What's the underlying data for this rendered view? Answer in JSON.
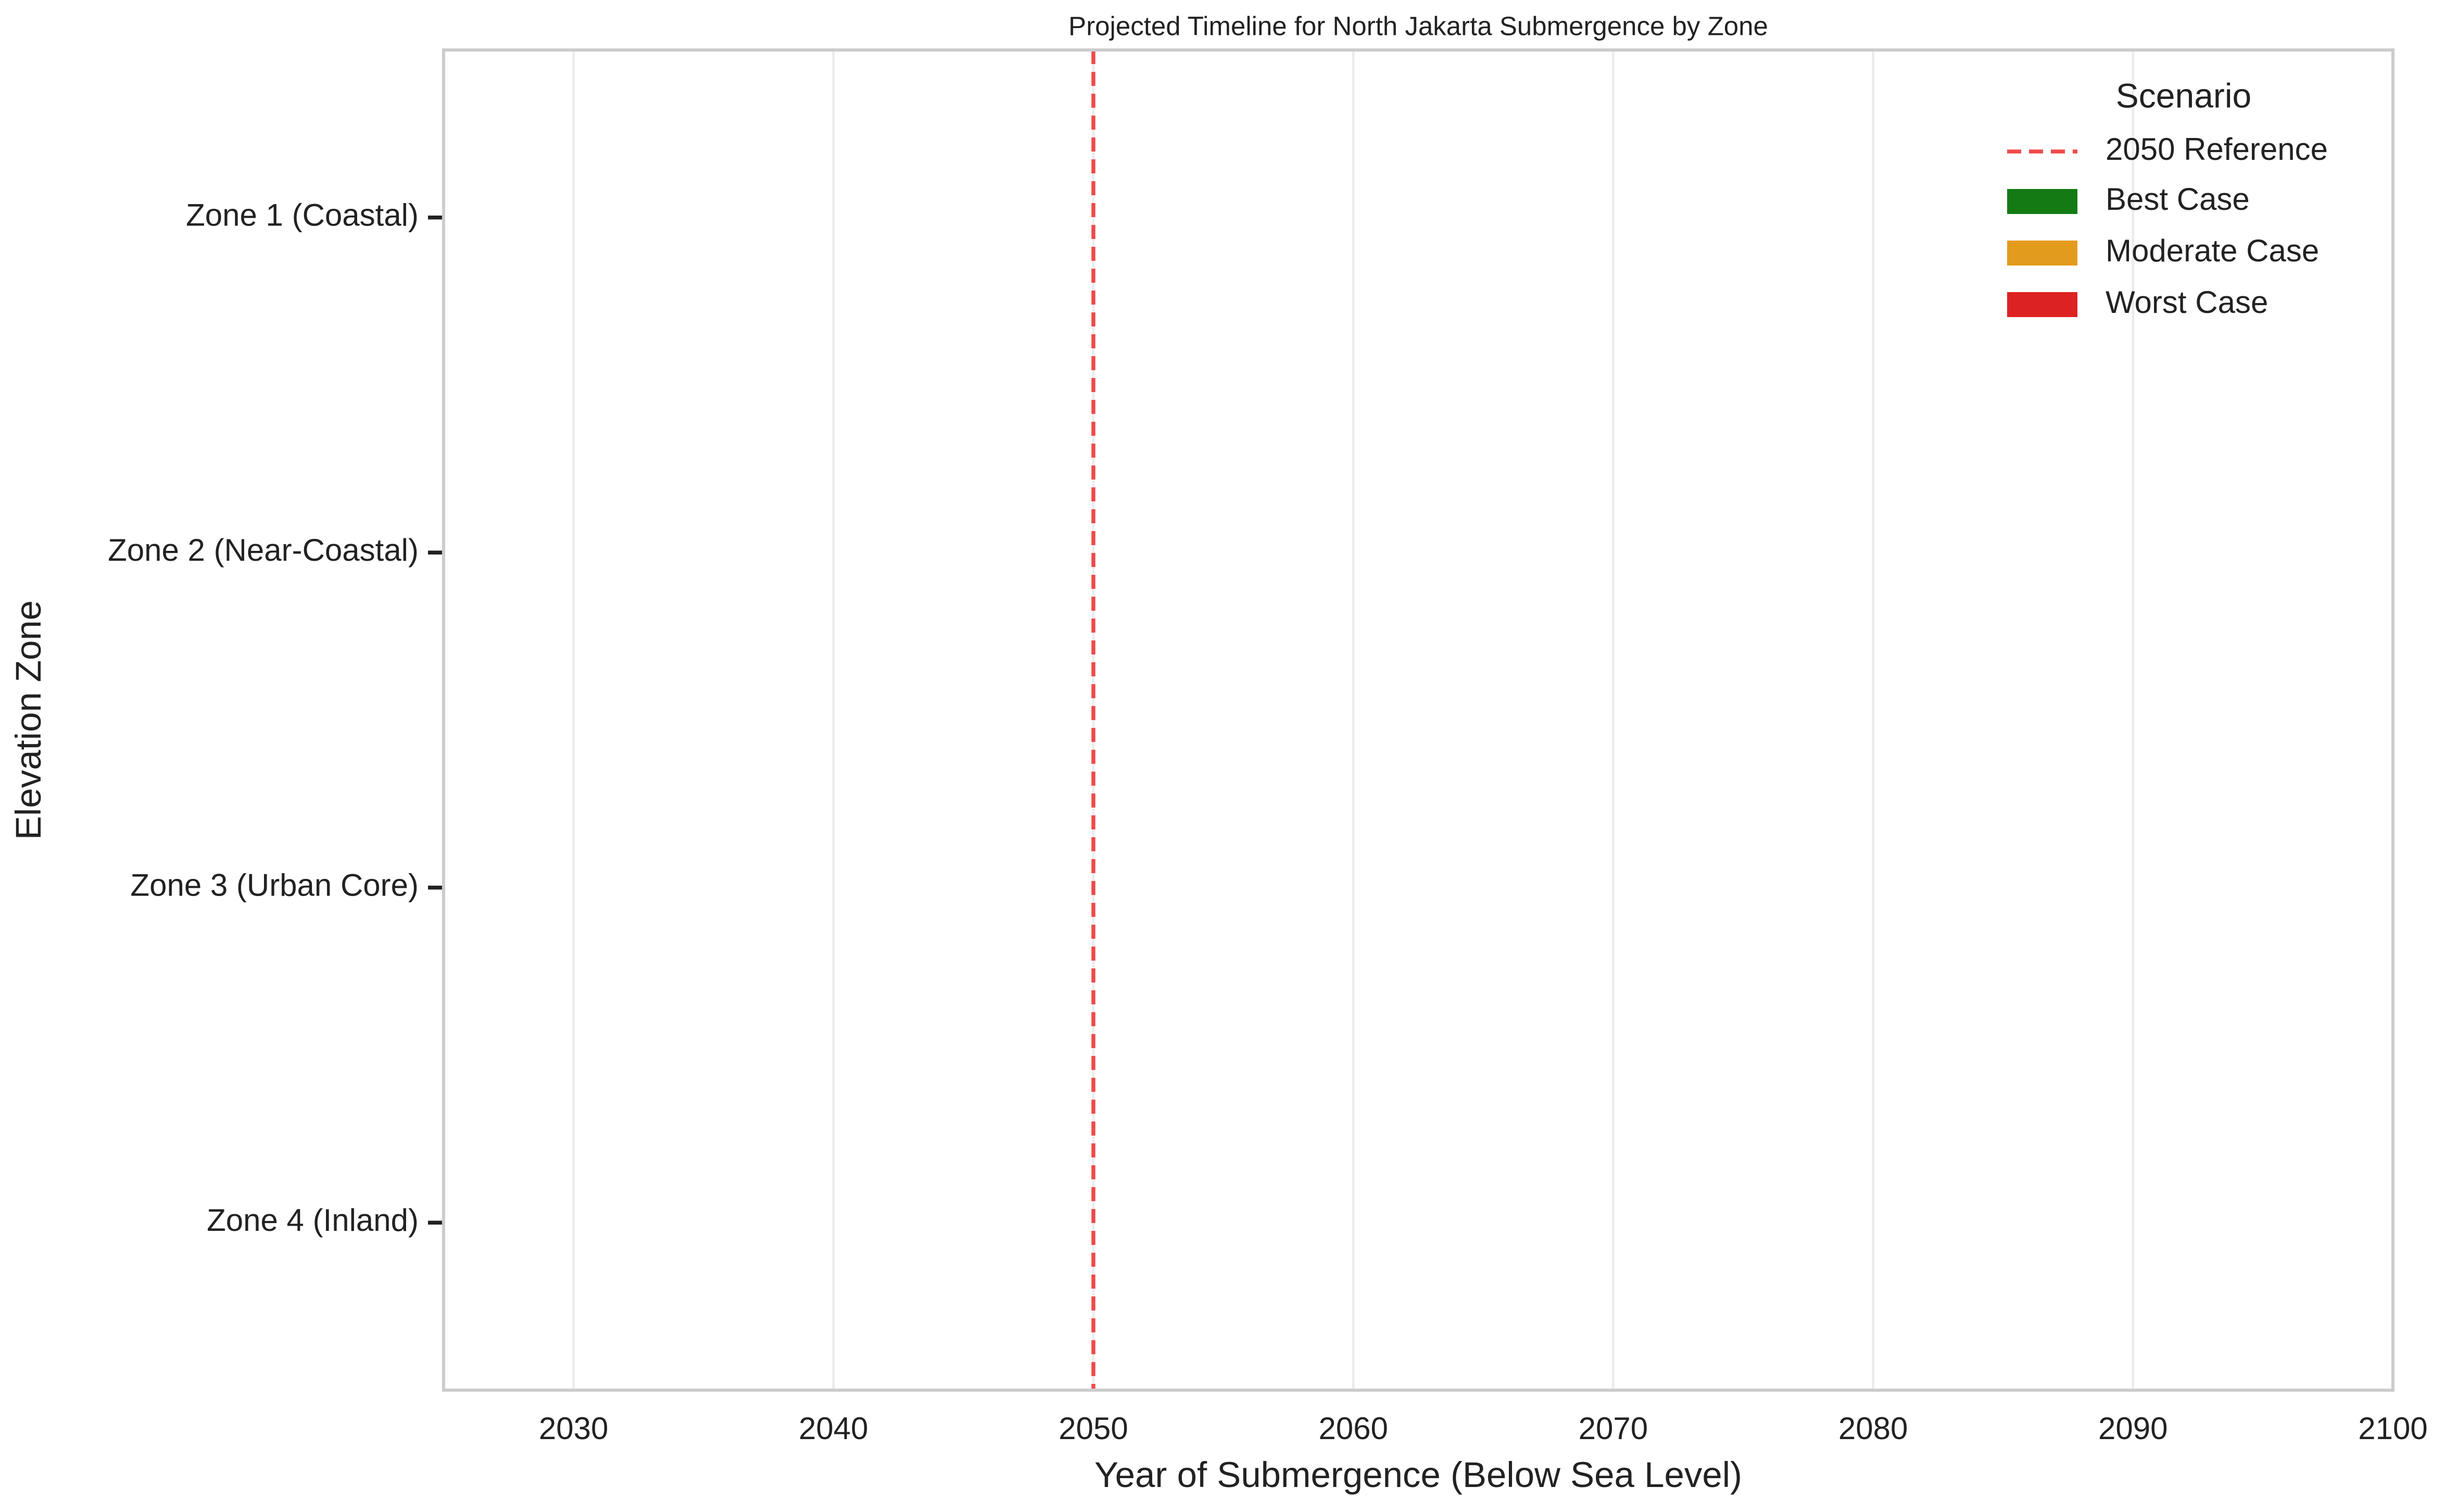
{
  "chart_data": {
    "type": "barh",
    "title": "Projected Timeline for North Jakarta Submergence by Zone",
    "xlabel": "Year of Submergence (Below Sea Level)",
    "ylabel": "Elevation Zone",
    "categories": [
      "Zone 1 (Coastal)",
      "Zone 2 (Near-Coastal)",
      "Zone 3 (Urban Core)",
      "Zone 4 (Inland)"
    ],
    "series": [
      {
        "name": "Best Case",
        "color": "#147a14",
        "values": [
          null,
          null,
          null,
          null
        ]
      },
      {
        "name": "Moderate Case",
        "color": "#e39b1e",
        "values": [
          null,
          null,
          null,
          null
        ]
      },
      {
        "name": "Worst Case",
        "color": "#dd2222",
        "values": [
          null,
          null,
          null,
          null
        ]
      }
    ],
    "reference_line": {
      "value": 2050,
      "label": "2050 Reference",
      "color": "#f04a4a"
    },
    "legend_title": "Scenario",
    "legend": "upper right",
    "xlim": [
      2025,
      2100
    ],
    "xticks": [
      2030,
      2040,
      2050,
      2060,
      2070,
      2080,
      2090,
      2100
    ],
    "grid": true
  }
}
